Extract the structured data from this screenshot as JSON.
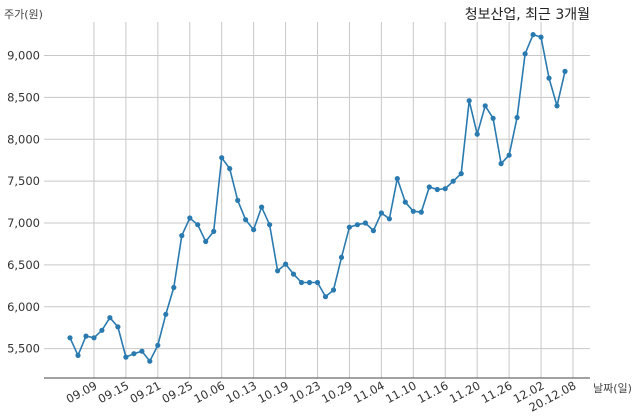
{
  "chart_data": {
    "type": "line",
    "title": "청보산업, 최근 3개월",
    "ylabel": "주가(원)",
    "xlabel": "날짜(일)",
    "ylim": [
      5150,
      9400
    ],
    "yticks": [
      5500,
      6000,
      6500,
      7000,
      7500,
      8000,
      8500,
      9000
    ],
    "ytick_labels": [
      "5,500",
      "6,000",
      "6,500",
      "7,000",
      "7,500",
      "8,000",
      "8,500",
      "9,000"
    ],
    "xticks": [
      {
        "label": "09.09",
        "index": 3
      },
      {
        "label": "09.15",
        "index": 7
      },
      {
        "label": "09.21",
        "index": 11
      },
      {
        "label": "09.25",
        "index": 15
      },
      {
        "label": "10.06",
        "index": 19
      },
      {
        "label": "10.13",
        "index": 23
      },
      {
        "label": "10.19",
        "index": 27
      },
      {
        "label": "10.23",
        "index": 31
      },
      {
        "label": "10.29",
        "index": 35
      },
      {
        "label": "11.04",
        "index": 39
      },
      {
        "label": "11.10",
        "index": 43
      },
      {
        "label": "11.16",
        "index": 47
      },
      {
        "label": "11.20",
        "index": 51
      },
      {
        "label": "11.26",
        "index": 55
      },
      {
        "label": "12.02",
        "index": 59
      },
      {
        "label": "20.12.08",
        "index": 63
      }
    ],
    "grid": true,
    "series": [
      {
        "color": "#2a7ab0",
        "values": [
          5630,
          5420,
          5650,
          5630,
          5720,
          5870,
          5760,
          5400,
          5440,
          5470,
          5350,
          5540,
          5910,
          6230,
          6850,
          7060,
          6980,
          6780,
          6900,
          7780,
          7650,
          7270,
          7040,
          6920,
          7190,
          6980,
          6430,
          6510,
          6390,
          6290,
          6290,
          6290,
          6120,
          6200,
          6590,
          6950,
          6980,
          7000,
          6910,
          7120,
          7050,
          7530,
          7250,
          7140,
          7130,
          7430,
          7400,
          7410,
          7500,
          7590,
          8460,
          8060,
          8400,
          8250,
          7710,
          7810,
          8260,
          9020,
          9250,
          9220,
          8730,
          8400,
          8810
        ]
      }
    ]
  }
}
